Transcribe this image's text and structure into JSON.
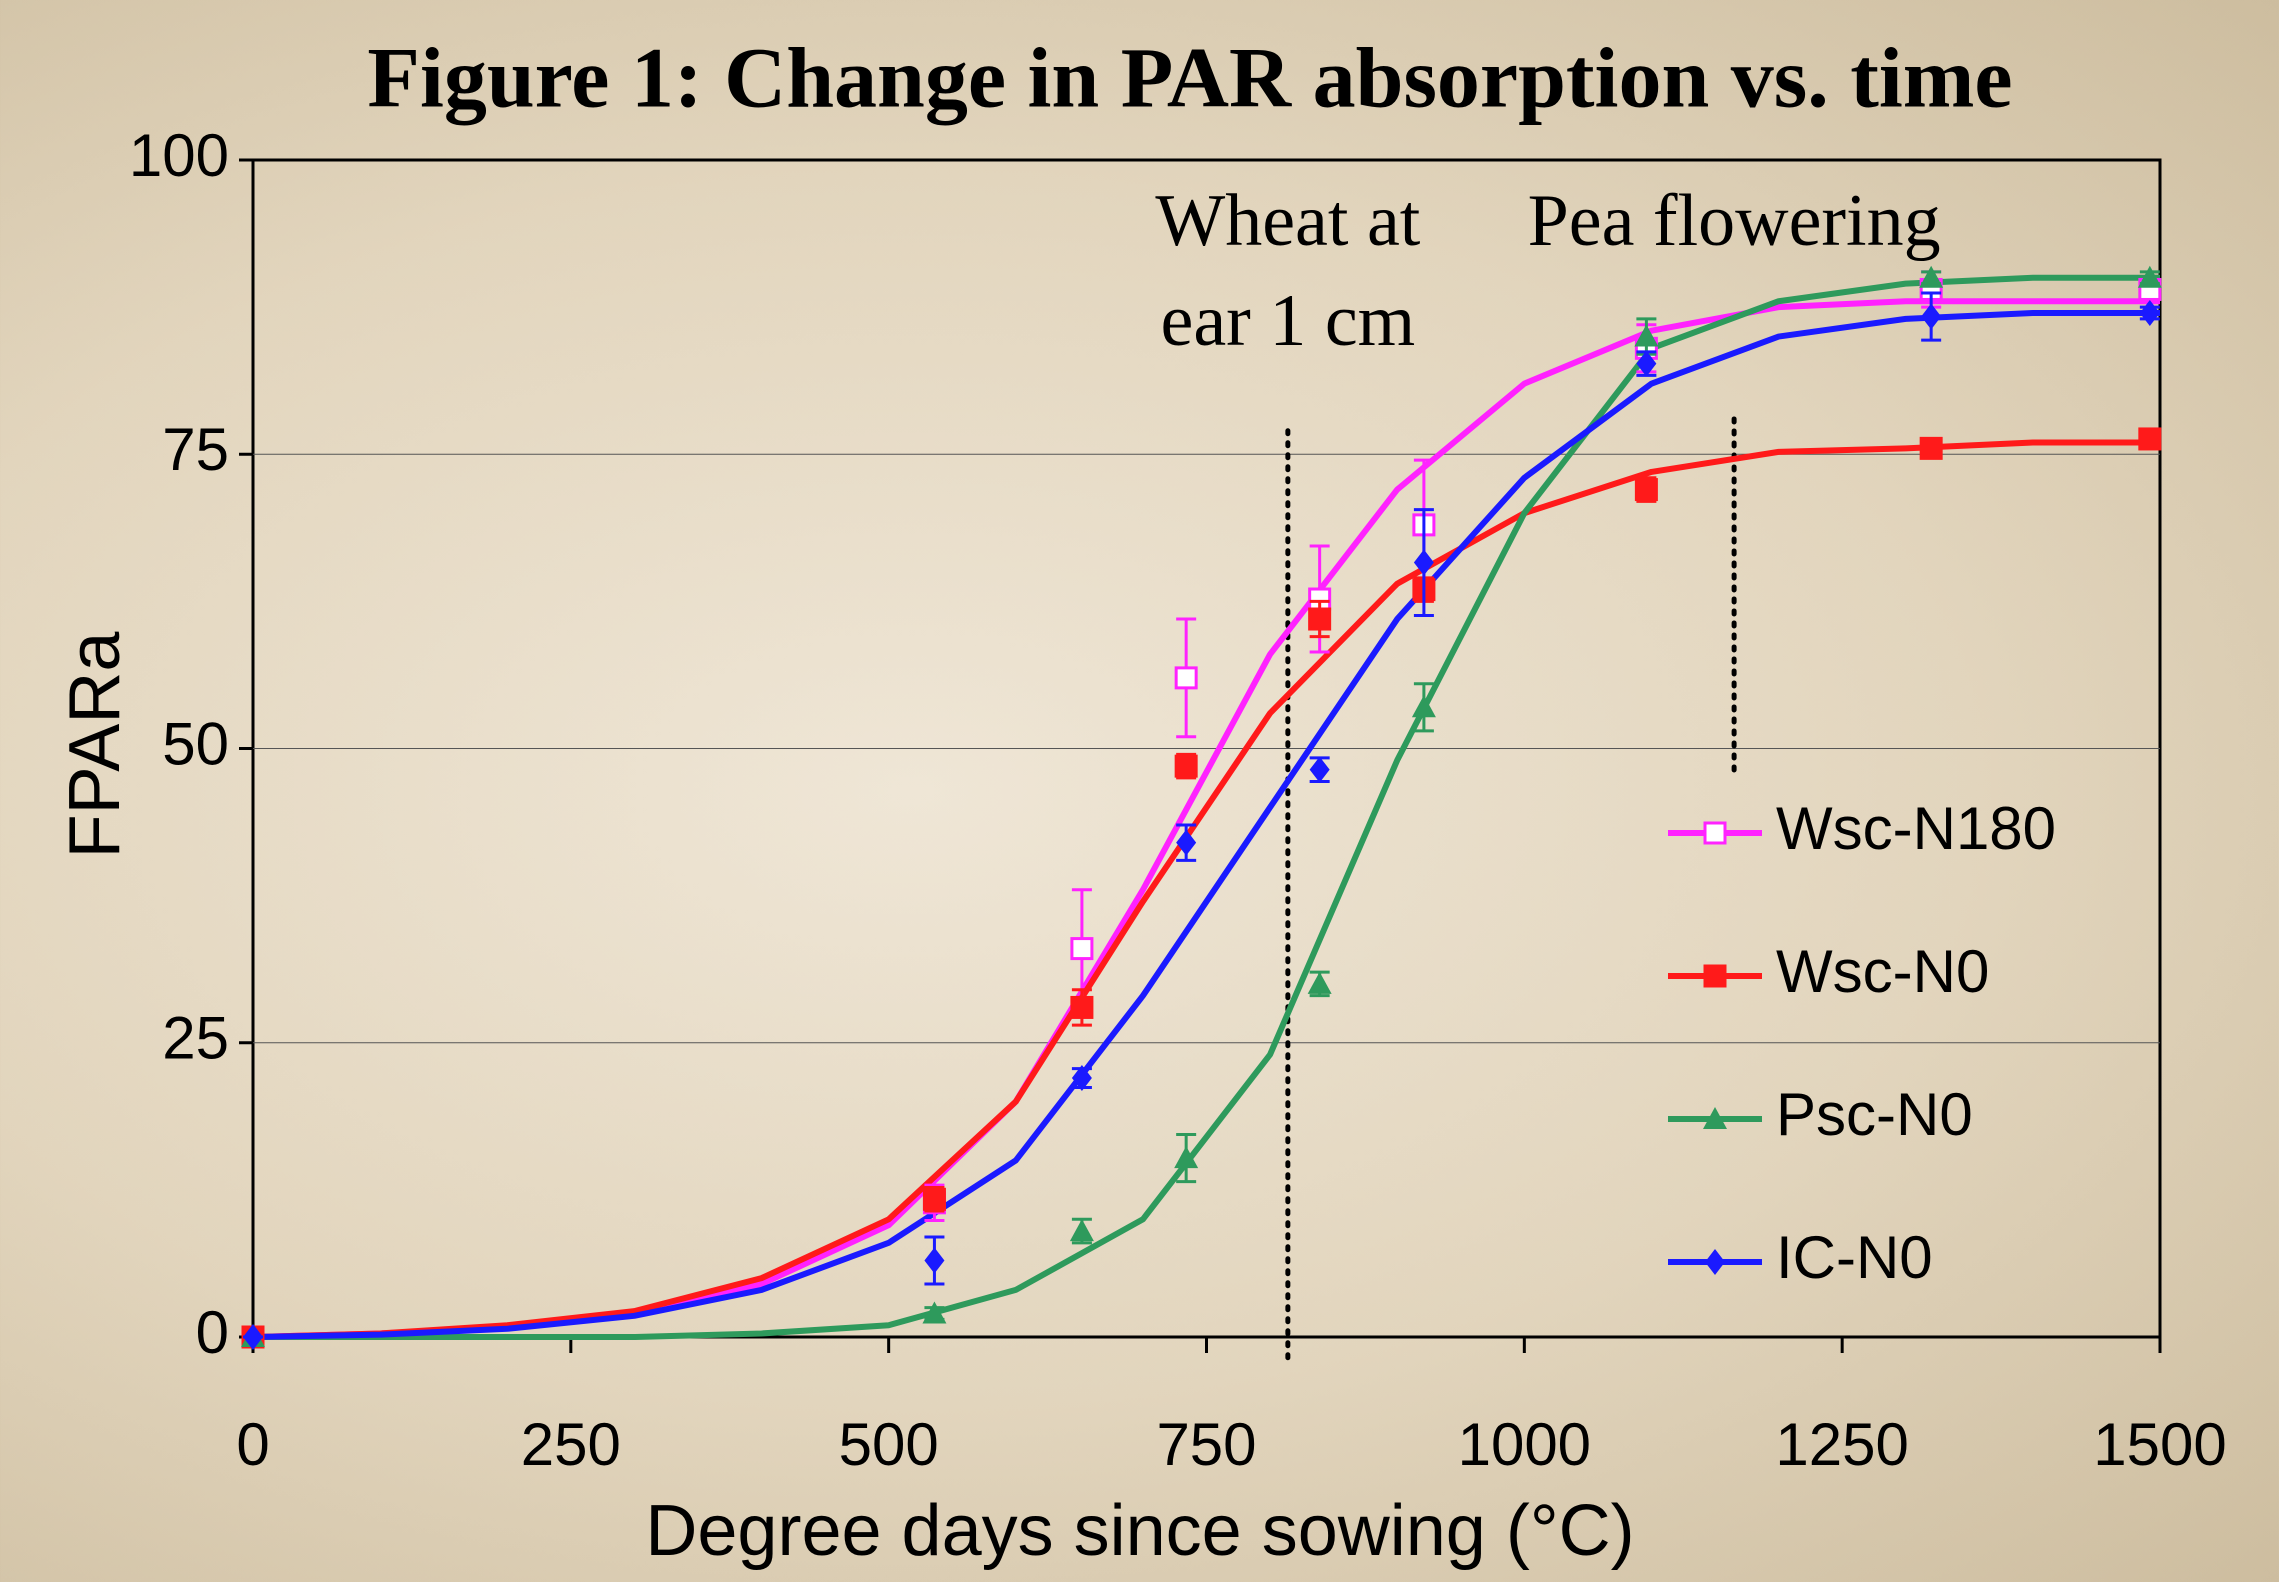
{
  "chart_data": {
    "type": "scatter",
    "title": "Figure 1: Change in PAR absorption vs. time",
    "x_label": "Degree days since sowing (°C)",
    "y_label": "FPARa",
    "xlim": [
      0,
      1500
    ],
    "xticks": [
      0,
      250,
      500,
      750,
      1000,
      1250,
      1500
    ],
    "ylim": [
      0,
      100
    ],
    "yticks": [
      0,
      25,
      50,
      75,
      100
    ],
    "grid": true,
    "legend": "right",
    "x": [
      0,
      536,
      652,
      734,
      839,
      921,
      1096,
      1320,
      1492
    ],
    "fit_x": [
      0,
      100,
      200,
      300,
      400,
      500,
      600,
      700,
      800,
      900,
      1000,
      1100,
      1200,
      1300,
      1400,
      1500
    ],
    "series": [
      {
        "name": "Wsc-N180",
        "color": "#ff22ff",
        "marker": "open-square",
        "values": [
          0,
          11.4,
          33,
          56,
          62.7,
          69,
          84,
          89,
          89
        ],
        "errors": [
          0,
          1.5,
          5,
          5,
          4.5,
          5.5,
          2,
          1.5,
          0.5
        ],
        "fit_values": [
          0,
          0.3,
          0.8,
          2,
          4.5,
          9.5,
          20,
          38,
          58,
          72,
          81,
          85.5,
          87.5,
          88,
          88,
          88
        ]
      },
      {
        "name": "Wsc-N0",
        "color": "#ff1a1a",
        "marker": "square",
        "values": [
          0,
          11.7,
          28,
          48.5,
          61,
          63.5,
          72,
          75.5,
          76.3
        ],
        "errors": [
          0,
          1,
          1.5,
          1,
          1.5,
          1,
          1,
          0.5,
          0.5
        ],
        "fit_values": [
          0,
          0.3,
          1,
          2.2,
          5,
          10,
          20,
          37,
          53,
          64,
          70,
          73.5,
          75.2,
          75.5,
          76,
          76
        ]
      },
      {
        "name": "Psc-N0",
        "color": "#2e9a5c",
        "marker": "triangle",
        "values": [
          0,
          2,
          9,
          15.2,
          30,
          53.5,
          85,
          90,
          90
        ],
        "errors": [
          0,
          0.5,
          1,
          2,
          1,
          2,
          1.5,
          0.5,
          0.5
        ],
        "fit_values": [
          0,
          0,
          0,
          0,
          0.3,
          1,
          4,
          10,
          24,
          49,
          70,
          84,
          88,
          89.5,
          90,
          90
        ]
      },
      {
        "name": "IC-N0",
        "color": "#1a1aff",
        "marker": "diamond",
        "values": [
          0,
          6.5,
          22,
          42,
          48.2,
          65.8,
          82.7,
          86.7,
          87
        ],
        "errors": [
          0,
          2,
          0.8,
          1.5,
          1,
          4.5,
          1,
          2,
          0.5
        ],
        "fit_values": [
          0,
          0.2,
          0.7,
          1.8,
          4,
          8,
          15,
          29,
          45,
          61,
          73,
          81,
          85,
          86.5,
          87,
          87
        ]
      }
    ],
    "annotations": [
      {
        "lines": [
          "Wheat at",
          "ear 1 cm"
        ],
        "x": 814
      },
      {
        "lines": [
          "Pea flowering"
        ],
        "x": 1165
      }
    ]
  }
}
